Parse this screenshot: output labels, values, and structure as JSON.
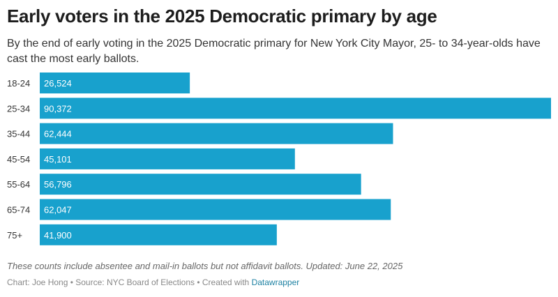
{
  "header": {
    "title": "Early voters in the 2025 Democratic primary by age",
    "subtitle": "By the end of early voting in the 2025 Democratic primary for New York City Mayor, 25- to 34-year-olds have cast the most early ballots."
  },
  "chart_data": {
    "type": "bar",
    "orientation": "horizontal",
    "categories": [
      "18-24",
      "25-34",
      "35-44",
      "45-54",
      "55-64",
      "65-74",
      "75+"
    ],
    "values": [
      26524,
      90372,
      62444,
      45101,
      56796,
      62047,
      41900
    ],
    "value_labels": [
      "26,524",
      "90,372",
      "62,444",
      "45,101",
      "56,796",
      "62,047",
      "41,900"
    ],
    "title": "Early voters in the 2025 Democratic primary by age",
    "xlabel": "",
    "ylabel": "",
    "xlim": [
      0,
      90372
    ],
    "grid": false,
    "legend": "none",
    "bar_color": "#18a1cd",
    "label_color": "#ffffff"
  },
  "footer": {
    "note": "These counts include absentee and mail-in ballots but not affidavit ballots. Updated: June 22, 2025",
    "credit_prefix": "Chart: Joe Hong • Source: NYC Board of Elections • Created with ",
    "credit_link": "Datawrapper"
  }
}
